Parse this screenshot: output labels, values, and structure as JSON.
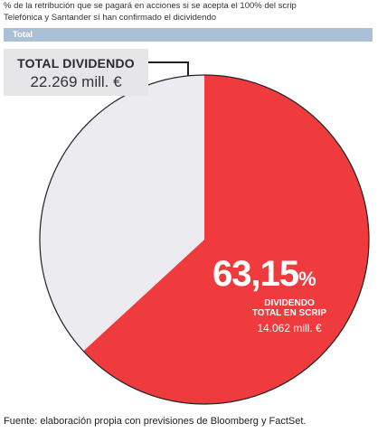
{
  "header": {
    "subtitle_line1": "% de la retribución que se pagará en acciones si se acepta el 100% del scrip",
    "subtitle_line2": "Telefónica y Santander sí han confirmado el dicividendo",
    "section_label": "Total"
  },
  "total_box": {
    "label": "TOTAL DIVIDENDO",
    "amount": "22.269 mill. €"
  },
  "scrip_slice": {
    "percent_number": "63,15",
    "percent_symbol": "%",
    "label_line1": "DIVIDENDO",
    "label_line2": "TOTAL EN SCRIP",
    "amount": "14.062 mill. €"
  },
  "source": "Fuente: elaboración propia con previsiones de Bloomberg y FactSet.",
  "colors": {
    "scrip": "#ef3b3e",
    "rest": "#ececf0",
    "bar": "#a9c0d6"
  },
  "chart_data": {
    "type": "pie",
    "title": "",
    "slices": [
      {
        "label": "DIVIDENDO TOTAL EN SCRIP",
        "value": 63.15,
        "amount": 14062
      },
      {
        "label": "",
        "value": 36.85,
        "amount": 8207
      }
    ],
    "total": 22269,
    "unit": "mill. €"
  }
}
